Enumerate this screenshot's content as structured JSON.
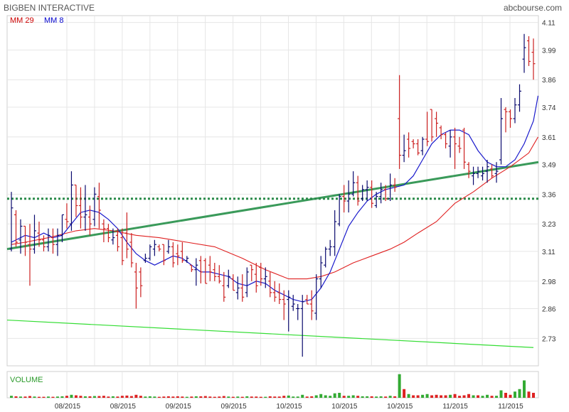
{
  "header": {
    "title": "BIGBEN INTERACTIVE",
    "source": "abcbourse.com"
  },
  "legend": [
    {
      "label": "MM 29",
      "color": "#cc0000"
    },
    {
      "label": "MM 8",
      "color": "#0000cc"
    }
  ],
  "volume_label": "VOLUME",
  "colors": {
    "up": "#0a0a6e",
    "down": "#cc2020",
    "mm29": "#e02020",
    "mm8": "#1a1acc",
    "trend_thick": "#3a9a5a",
    "trend_thin": "#33dd33",
    "dotted": "#2a8a4a",
    "vol_up": "#33aa33",
    "vol_down": "#dd2222",
    "grid": "#e6e6e6",
    "frame": "#cfcfcf"
  },
  "chart_data": {
    "type": "ohlc",
    "y_ticks": [
      "4.11",
      "3.99",
      "3.86",
      "3.74",
      "3.61",
      "3.49",
      "3.36",
      "3.23",
      "3.11",
      "2.98",
      "2.86",
      "2.73"
    ],
    "x_ticks": [
      "08/2015",
      "08/2015",
      "09/2015",
      "09/2015",
      "10/2015",
      "10/2015",
      "10/2015",
      "11/2015",
      "11/2015"
    ],
    "ylim": [
      2.61,
      4.14
    ],
    "grid": true,
    "bars": [
      [
        3.12,
        3.37,
        3.11,
        3.3
      ],
      [
        3.27,
        3.29,
        3.13,
        3.15
      ],
      [
        3.16,
        3.25,
        3.1,
        3.22
      ],
      [
        3.22,
        3.22,
        3.09,
        3.15
      ],
      [
        3.14,
        3.23,
        2.96,
        3.12
      ],
      [
        3.12,
        3.27,
        3.1,
        3.2
      ],
      [
        3.19,
        3.24,
        3.13,
        3.16
      ],
      [
        3.16,
        3.18,
        3.11,
        3.13
      ],
      [
        3.13,
        3.21,
        3.11,
        3.18
      ],
      [
        3.17,
        3.21,
        3.1,
        3.14
      ],
      [
        3.14,
        3.21,
        3.09,
        3.18
      ],
      [
        3.18,
        3.27,
        3.15,
        3.27
      ],
      [
        3.25,
        3.32,
        3.21,
        3.24
      ],
      [
        3.23,
        3.46,
        3.2,
        3.4
      ],
      [
        3.4,
        3.4,
        3.26,
        3.31
      ],
      [
        3.31,
        3.39,
        3.21,
        3.26
      ],
      [
        3.26,
        3.4,
        3.2,
        3.27
      ],
      [
        3.26,
        3.31,
        3.18,
        3.23
      ],
      [
        3.25,
        3.39,
        3.22,
        3.36
      ],
      [
        3.35,
        3.41,
        3.21,
        3.29
      ],
      [
        3.23,
        3.25,
        3.15,
        3.21
      ],
      [
        3.21,
        3.23,
        3.15,
        3.17
      ],
      [
        3.16,
        3.21,
        3.14,
        3.17
      ],
      [
        3.18,
        3.21,
        3.11,
        3.13
      ],
      [
        3.17,
        3.21,
        3.05,
        3.07
      ],
      [
        3.19,
        3.28,
        3.08,
        3.12
      ],
      [
        3.15,
        3.19,
        3.04,
        3.06
      ],
      [
        3.02,
        3.06,
        2.86,
        2.95
      ],
      [
        3.02,
        3.04,
        2.91,
        2.96
      ],
      [
        3.07,
        3.1,
        3.06,
        3.08
      ],
      [
        3.08,
        3.14,
        3.07,
        3.13
      ],
      [
        3.12,
        3.16,
        3.09,
        3.14
      ],
      [
        3.13,
        3.14,
        3.11,
        3.12
      ],
      [
        3.14,
        3.14,
        3.05,
        3.07
      ],
      [
        3.11,
        3.16,
        3.1,
        3.13
      ],
      [
        3.13,
        3.15,
        3.04,
        3.06
      ],
      [
        3.1,
        3.14,
        3.05,
        3.09
      ],
      [
        3.11,
        3.15,
        3.06,
        3.07
      ],
      [
        3.07,
        3.09,
        3.06,
        3.08
      ],
      [
        3.05,
        3.05,
        3.02,
        3.03
      ],
      [
        3.03,
        3.08,
        2.96,
        3.05
      ],
      [
        3.07,
        3.09,
        2.97,
        3.02
      ],
      [
        3.07,
        3.08,
        2.97,
        2.97
      ],
      [
        3.05,
        3.09,
        2.98,
        3.02
      ],
      [
        3.03,
        3.06,
        2.98,
        3.0
      ],
      [
        3.0,
        3.05,
        2.97,
        2.98
      ],
      [
        2.96,
        3.02,
        2.89,
        2.91
      ],
      [
        2.96,
        3.03,
        2.95,
        3.0
      ],
      [
        2.99,
        3.01,
        2.94,
        2.94
      ],
      [
        2.93,
        3.0,
        2.9,
        2.95
      ],
      [
        2.95,
        3.01,
        2.89,
        2.91
      ],
      [
        2.93,
        3.04,
        2.91,
        3.02
      ],
      [
        3.05,
        3.05,
        2.98,
        3.03
      ],
      [
        3.01,
        3.06,
        2.93,
        2.96
      ],
      [
        3.04,
        3.06,
        2.96,
        2.99
      ],
      [
        2.99,
        3.04,
        2.95,
        3.0
      ],
      [
        2.98,
        3.02,
        2.91,
        2.93
      ],
      [
        2.93,
        2.98,
        2.89,
        2.91
      ],
      [
        2.93,
        2.97,
        2.88,
        2.9
      ],
      [
        2.9,
        2.94,
        2.81,
        2.88
      ],
      [
        2.9,
        2.94,
        2.76,
        2.91
      ],
      [
        2.87,
        2.92,
        2.85,
        2.88
      ],
      [
        2.86,
        2.88,
        2.81,
        2.86
      ],
      [
        2.86,
        2.92,
        2.65,
        2.89
      ],
      [
        2.9,
        2.92,
        2.88,
        2.88
      ],
      [
        2.88,
        2.94,
        2.81,
        2.85
      ],
      [
        2.84,
        3.01,
        2.81,
        2.99
      ],
      [
        2.99,
        3.09,
        2.95,
        3.06
      ],
      [
        3.05,
        3.13,
        3.04,
        3.12
      ],
      [
        3.12,
        3.16,
        3.09,
        3.13
      ],
      [
        3.13,
        3.29,
        3.09,
        3.24
      ],
      [
        3.23,
        3.36,
        3.22,
        3.35
      ],
      [
        3.35,
        3.4,
        3.28,
        3.33
      ],
      [
        3.33,
        3.42,
        3.28,
        3.36
      ],
      [
        3.36,
        3.46,
        3.35,
        3.41
      ],
      [
        3.41,
        3.44,
        3.31,
        3.33
      ],
      [
        3.34,
        3.4,
        3.33,
        3.38
      ],
      [
        3.38,
        3.42,
        3.33,
        3.39
      ],
      [
        3.39,
        3.42,
        3.3,
        3.32
      ],
      [
        3.31,
        3.37,
        3.3,
        3.35
      ],
      [
        3.35,
        3.41,
        3.32,
        3.38
      ],
      [
        3.38,
        3.4,
        3.33,
        3.34
      ],
      [
        3.34,
        3.45,
        3.33,
        3.4
      ],
      [
        3.4,
        3.43,
        3.37,
        3.39
      ],
      [
        3.69,
        3.88,
        3.47,
        3.53
      ],
      [
        3.53,
        3.62,
        3.5,
        3.55
      ],
      [
        3.6,
        3.63,
        3.52,
        3.56
      ],
      [
        3.59,
        3.6,
        3.56,
        3.58
      ],
      [
        3.58,
        3.6,
        3.53,
        3.54
      ],
      [
        3.55,
        3.61,
        3.53,
        3.6
      ],
      [
        3.6,
        3.72,
        3.57,
        3.59
      ],
      [
        3.73,
        3.73,
        3.59,
        3.61
      ],
      [
        3.69,
        3.72,
        3.61,
        3.67
      ],
      [
        3.65,
        3.66,
        3.6,
        3.62
      ],
      [
        3.62,
        3.63,
        3.56,
        3.58
      ],
      [
        3.57,
        3.64,
        3.52,
        3.61
      ],
      [
        3.61,
        3.65,
        3.47,
        3.58
      ],
      [
        3.57,
        3.61,
        3.54,
        3.56
      ],
      [
        3.64,
        3.65,
        3.47,
        3.5
      ],
      [
        3.49,
        3.5,
        3.43,
        3.46
      ],
      [
        3.44,
        3.48,
        3.4,
        3.45
      ],
      [
        3.45,
        3.48,
        3.43,
        3.46
      ],
      [
        3.44,
        3.48,
        3.42,
        3.45
      ],
      [
        3.46,
        3.51,
        3.41,
        3.48
      ],
      [
        3.47,
        3.49,
        3.43,
        3.44
      ],
      [
        3.45,
        3.5,
        3.41,
        3.46
      ],
      [
        3.51,
        3.78,
        3.49,
        3.69
      ],
      [
        3.73,
        3.74,
        3.63,
        3.72
      ],
      [
        3.72,
        3.73,
        3.65,
        3.69
      ],
      [
        3.69,
        3.78,
        3.67,
        3.75
      ],
      [
        3.75,
        3.84,
        3.72,
        3.81
      ],
      [
        3.95,
        4.06,
        3.89,
        4.0
      ],
      [
        4.03,
        4.05,
        3.92,
        3.94
      ],
      [
        3.98,
        4.04,
        3.86,
        3.93
      ]
    ],
    "volume": [
      [
        0.08,
        "up"
      ],
      [
        0.06,
        "down"
      ],
      [
        0.05,
        "up"
      ],
      [
        0.05,
        "down"
      ],
      [
        0.07,
        "down"
      ],
      [
        0.05,
        "up"
      ],
      [
        0.04,
        "down"
      ],
      [
        0.04,
        "down"
      ],
      [
        0.05,
        "up"
      ],
      [
        0.04,
        "down"
      ],
      [
        0.05,
        "up"
      ],
      [
        0.06,
        "up"
      ],
      [
        0.08,
        "down"
      ],
      [
        0.12,
        "up"
      ],
      [
        0.1,
        "down"
      ],
      [
        0.08,
        "down"
      ],
      [
        0.06,
        "up"
      ],
      [
        0.06,
        "down"
      ],
      [
        0.07,
        "up"
      ],
      [
        0.07,
        "down"
      ],
      [
        0.08,
        "down"
      ],
      [
        0.05,
        "down"
      ],
      [
        0.06,
        "up"
      ],
      [
        0.05,
        "down"
      ],
      [
        0.08,
        "down"
      ],
      [
        0.09,
        "down"
      ],
      [
        0.07,
        "down"
      ],
      [
        0.12,
        "down"
      ],
      [
        0.08,
        "down"
      ],
      [
        0.05,
        "up"
      ],
      [
        0.06,
        "up"
      ],
      [
        0.05,
        "up"
      ],
      [
        0.04,
        "down"
      ],
      [
        0.05,
        "down"
      ],
      [
        0.06,
        "down"
      ],
      [
        0.05,
        "down"
      ],
      [
        0.06,
        "down"
      ],
      [
        0.05,
        "down"
      ],
      [
        0.04,
        "up"
      ],
      [
        0.05,
        "down"
      ],
      [
        0.06,
        "up"
      ],
      [
        0.06,
        "down"
      ],
      [
        0.07,
        "down"
      ],
      [
        0.05,
        "down"
      ],
      [
        0.04,
        "down"
      ],
      [
        0.05,
        "down"
      ],
      [
        0.07,
        "down"
      ],
      [
        0.05,
        "up"
      ],
      [
        0.04,
        "down"
      ],
      [
        0.05,
        "up"
      ],
      [
        0.04,
        "down"
      ],
      [
        0.06,
        "up"
      ],
      [
        0.05,
        "down"
      ],
      [
        0.05,
        "down"
      ],
      [
        0.04,
        "down"
      ],
      [
        0.04,
        "up"
      ],
      [
        0.06,
        "down"
      ],
      [
        0.05,
        "down"
      ],
      [
        0.05,
        "down"
      ],
      [
        0.08,
        "down"
      ],
      [
        0.09,
        "up"
      ],
      [
        0.05,
        "up"
      ],
      [
        0.05,
        "up"
      ],
      [
        0.12,
        "up"
      ],
      [
        0.05,
        "down"
      ],
      [
        0.06,
        "down"
      ],
      [
        0.1,
        "up"
      ],
      [
        0.15,
        "up"
      ],
      [
        0.1,
        "up"
      ],
      [
        0.08,
        "up"
      ],
      [
        0.18,
        "up"
      ],
      [
        0.2,
        "up"
      ],
      [
        0.08,
        "down"
      ],
      [
        0.08,
        "up"
      ],
      [
        0.1,
        "up"
      ],
      [
        0.08,
        "down"
      ],
      [
        0.06,
        "up"
      ],
      [
        0.06,
        "up"
      ],
      [
        0.06,
        "down"
      ],
      [
        0.05,
        "up"
      ],
      [
        0.06,
        "up"
      ],
      [
        0.05,
        "down"
      ],
      [
        0.08,
        "up"
      ],
      [
        0.06,
        "down"
      ],
      [
        0.95,
        "up"
      ],
      [
        0.35,
        "down"
      ],
      [
        0.15,
        "up"
      ],
      [
        0.1,
        "down"
      ],
      [
        0.1,
        "down"
      ],
      [
        0.12,
        "up"
      ],
      [
        0.15,
        "up"
      ],
      [
        0.1,
        "down"
      ],
      [
        0.12,
        "down"
      ],
      [
        0.1,
        "down"
      ],
      [
        0.1,
        "down"
      ],
      [
        0.12,
        "up"
      ],
      [
        0.15,
        "down"
      ],
      [
        0.08,
        "down"
      ],
      [
        0.1,
        "down"
      ],
      [
        0.15,
        "down"
      ],
      [
        0.1,
        "up"
      ],
      [
        0.1,
        "down"
      ],
      [
        0.08,
        "up"
      ],
      [
        0.12,
        "up"
      ],
      [
        0.08,
        "down"
      ],
      [
        0.08,
        "up"
      ],
      [
        0.3,
        "up"
      ],
      [
        0.2,
        "down"
      ],
      [
        0.12,
        "down"
      ],
      [
        0.25,
        "up"
      ],
      [
        0.35,
        "up"
      ],
      [
        0.7,
        "up"
      ],
      [
        0.25,
        "down"
      ],
      [
        0.2,
        "down"
      ]
    ],
    "mm29": [
      [
        0,
        3.14
      ],
      [
        3,
        3.15
      ],
      [
        8,
        3.17
      ],
      [
        14,
        3.2
      ],
      [
        18,
        3.21
      ],
      [
        22,
        3.2
      ],
      [
        27,
        3.18
      ],
      [
        32,
        3.17
      ],
      [
        38,
        3.15
      ],
      [
        44,
        3.13
      ],
      [
        50,
        3.08
      ],
      [
        55,
        3.03
      ],
      [
        60,
        2.99
      ],
      [
        64,
        2.99
      ],
      [
        67,
        3.0
      ],
      [
        70,
        3.02
      ],
      [
        74,
        3.06
      ],
      [
        78,
        3.09
      ],
      [
        82,
        3.12
      ],
      [
        85,
        3.15
      ],
      [
        88,
        3.19
      ],
      [
        92,
        3.24
      ],
      [
        96,
        3.32
      ],
      [
        100,
        3.37
      ],
      [
        104,
        3.43
      ],
      [
        108,
        3.48
      ],
      [
        112,
        3.54
      ],
      [
        114,
        3.61
      ]
    ],
    "mm8": [
      [
        0,
        3.15
      ],
      [
        3,
        3.18
      ],
      [
        5,
        3.17
      ],
      [
        7,
        3.19
      ],
      [
        9,
        3.17
      ],
      [
        11,
        3.18
      ],
      [
        13,
        3.23
      ],
      [
        15,
        3.28
      ],
      [
        17,
        3.29
      ],
      [
        19,
        3.28
      ],
      [
        21,
        3.25
      ],
      [
        23,
        3.21
      ],
      [
        25,
        3.15
      ],
      [
        27,
        3.1
      ],
      [
        29,
        3.07
      ],
      [
        31,
        3.05
      ],
      [
        33,
        3.07
      ],
      [
        35,
        3.09
      ],
      [
        37,
        3.08
      ],
      [
        39,
        3.05
      ],
      [
        41,
        3.02
      ],
      [
        43,
        3.02
      ],
      [
        45,
        3.01
      ],
      [
        47,
        3.0
      ],
      [
        49,
        2.97
      ],
      [
        51,
        2.96
      ],
      [
        53,
        2.98
      ],
      [
        55,
        2.97
      ],
      [
        57,
        2.94
      ],
      [
        59,
        2.92
      ],
      [
        61,
        2.9
      ],
      [
        63,
        2.89
      ],
      [
        65,
        2.9
      ],
      [
        67,
        2.95
      ],
      [
        69,
        3.02
      ],
      [
        71,
        3.12
      ],
      [
        73,
        3.22
      ],
      [
        75,
        3.28
      ],
      [
        77,
        3.33
      ],
      [
        79,
        3.36
      ],
      [
        81,
        3.38
      ],
      [
        83,
        3.39
      ],
      [
        85,
        3.4
      ],
      [
        87,
        3.44
      ],
      [
        89,
        3.51
      ],
      [
        91,
        3.58
      ],
      [
        93,
        3.62
      ],
      [
        95,
        3.64
      ],
      [
        97,
        3.64
      ],
      [
        99,
        3.62
      ],
      [
        101,
        3.55
      ],
      [
        103,
        3.5
      ],
      [
        105,
        3.48
      ],
      [
        107,
        3.48
      ],
      [
        109,
        3.51
      ],
      [
        111,
        3.58
      ],
      [
        113,
        3.68
      ],
      [
        114,
        3.79
      ]
    ],
    "lines": [
      {
        "type": "trend_thick",
        "from": [
          -3,
          3.12
        ],
        "to": [
          116,
          3.5
        ]
      },
      {
        "type": "trend_thin",
        "from": [
          -3,
          2.81
        ],
        "to": [
          113,
          2.69
        ]
      },
      {
        "type": "dotted",
        "y": 3.34
      }
    ]
  }
}
